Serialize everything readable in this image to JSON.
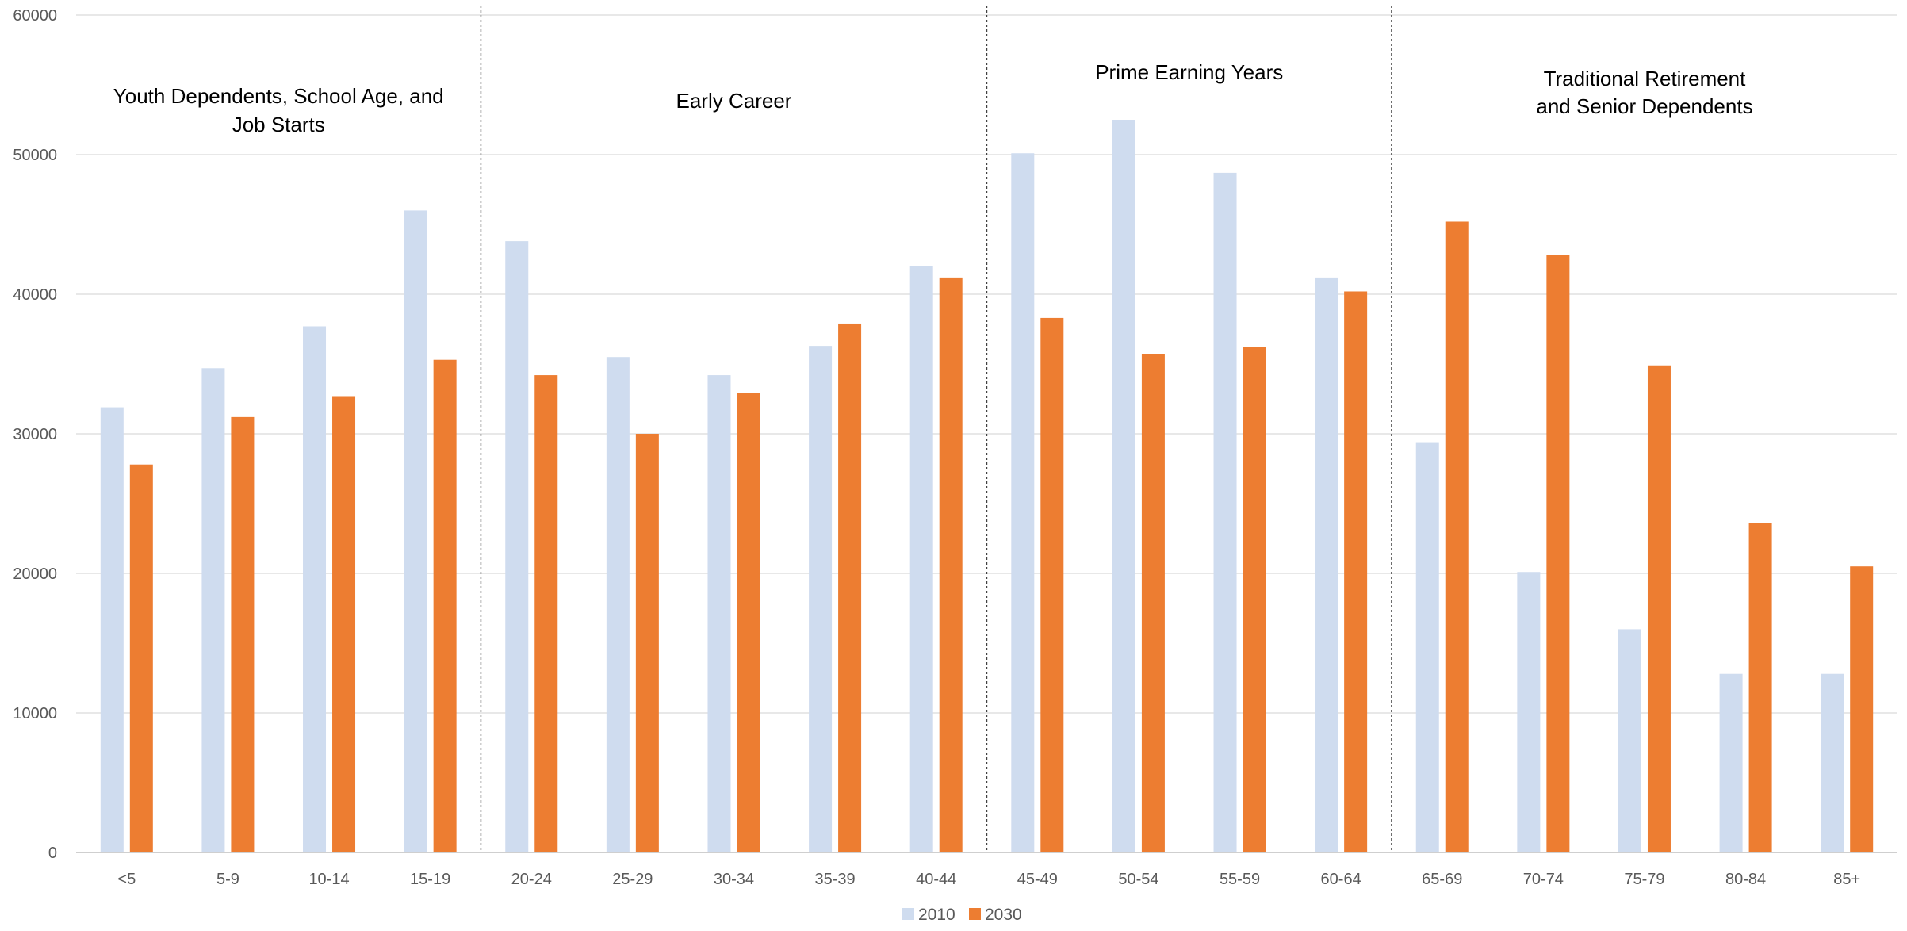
{
  "chart_data": {
    "type": "bar",
    "categories": [
      "<5",
      "5-9",
      "10-14",
      "15-19",
      "20-24",
      "25-29",
      "30-34",
      "35-39",
      "40-44",
      "45-49",
      "50-54",
      "55-59",
      "60-64",
      "65-69",
      "70-74",
      "75-79",
      "80-84",
      "85+"
    ],
    "series": [
      {
        "name": "2010",
        "color": "#cfdcef",
        "values": [
          31900,
          34700,
          37700,
          46000,
          43800,
          35500,
          34200,
          36300,
          42000,
          50100,
          52500,
          48700,
          41200,
          29400,
          20100,
          16000,
          12800,
          12800
        ]
      },
      {
        "name": "2030",
        "color": "#ed7d31",
        "values": [
          27800,
          31200,
          32700,
          35300,
          34200,
          30000,
          32900,
          37900,
          41200,
          38300,
          35700,
          36200,
          40200,
          45200,
          42800,
          34900,
          23600,
          20500
        ]
      }
    ],
    "ylim": [
      0,
      60000
    ],
    "yticks": [
      0,
      10000,
      20000,
      30000,
      40000,
      50000,
      60000
    ],
    "grid": true,
    "legend_position": "bottom",
    "groups": [
      {
        "lines": [
          "Youth Dependents, School Age, and",
          "Job Starts"
        ],
        "start": 0,
        "end": 3
      },
      {
        "lines": [
          "Early Career"
        ],
        "start": 4,
        "end": 8
      },
      {
        "lines": [
          "Prime Earning Years"
        ],
        "start": 9,
        "end": 12
      },
      {
        "lines": [
          "Traditional Retirement",
          "and Senior Dependents"
        ],
        "start": 13,
        "end": 17
      }
    ]
  }
}
